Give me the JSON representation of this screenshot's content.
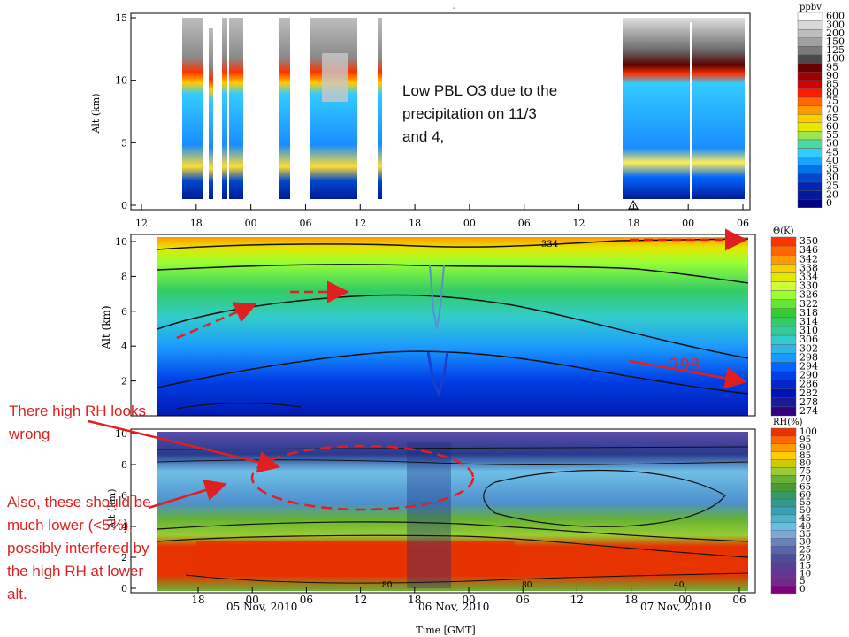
{
  "chart_data": [
    {
      "type": "heatmap",
      "panel": "ozone",
      "ylabel": "Alt (km)",
      "yticks": [
        0,
        5,
        10,
        15
      ],
      "ylim": [
        0,
        15
      ],
      "xticks": [
        "12",
        "18",
        "00",
        "06",
        "12",
        "18",
        "00",
        "06",
        "12",
        "18",
        "00",
        "06"
      ],
      "colorbar": {
        "unit": "ppbv",
        "levels": [
          "600",
          "300",
          "200",
          "150",
          "125",
          "100",
          "95",
          "90",
          "85",
          "80",
          "75",
          "70",
          "65",
          "60",
          "55",
          "50",
          "45",
          "40",
          "35",
          "30",
          "25",
          "20",
          "0"
        ],
        "colors": [
          "#ffffff",
          "#d8d8d8",
          "#bdbdbd",
          "#a0a0a0",
          "#7a7a7a",
          "#4a4a4a",
          "#6b0000",
          "#a00000",
          "#d40000",
          "#ff1a00",
          "#ff6600",
          "#ff9900",
          "#ffcc00",
          "#e6e600",
          "#99e64d",
          "#4dd9a6",
          "#33ccff",
          "#1aa3ff",
          "#0073e6",
          "#0047cc",
          "#0026b3",
          "#001a99",
          "#000080"
        ]
      }
    },
    {
      "type": "heatmap",
      "panel": "theta",
      "ylabel": "Alt (km)",
      "yticks": [
        2,
        4,
        6,
        8,
        10
      ],
      "ylim": [
        0,
        10
      ],
      "contour_labels": [
        "334",
        "298"
      ],
      "colorbar": {
        "unit": "Θ(K)",
        "levels": [
          "350",
          "346",
          "342",
          "338",
          "334",
          "330",
          "326",
          "322",
          "318",
          "314",
          "310",
          "306",
          "302",
          "298",
          "294",
          "290",
          "286",
          "282",
          "278",
          "274"
        ],
        "colors": [
          "#ff3300",
          "#ff6600",
          "#ff9900",
          "#ffcc00",
          "#e6e600",
          "#ccff33",
          "#99ff33",
          "#66e633",
          "#33cc33",
          "#33cc66",
          "#33cc99",
          "#33cccc",
          "#33b3e6",
          "#1a99ff",
          "#0066ff",
          "#0040e6",
          "#0026cc",
          "#0013b3",
          "#1a1a99",
          "#330080"
        ]
      }
    },
    {
      "type": "heatmap",
      "panel": "rh",
      "xlabel": "Time [GMT]",
      "ylabel": "Alt (km)",
      "yticks": [
        0,
        2,
        4,
        6,
        8,
        10
      ],
      "ylim": [
        0,
        10
      ],
      "xticks": [
        "18",
        "00",
        "06",
        "12",
        "18",
        "00",
        "06",
        "12",
        "18",
        "00",
        "06"
      ],
      "date_labels": [
        "05 Nov, 2010",
        "06 Nov, 2010",
        "07 Nov, 2010"
      ],
      "contour_labels": [
        "80",
        "80",
        "40"
      ],
      "colorbar": {
        "unit": "RH(%)",
        "levels": [
          "100",
          "95",
          "90",
          "85",
          "80",
          "75",
          "70",
          "65",
          "60",
          "55",
          "50",
          "45",
          "40",
          "35",
          "30",
          "25",
          "20",
          "15",
          "10",
          "5",
          "0"
        ],
        "colors": [
          "#e63300",
          "#ff6600",
          "#ff9900",
          "#ffcc00",
          "#cccc00",
          "#99cc33",
          "#66b333",
          "#4d9933",
          "#339966",
          "#33998c",
          "#33a3b3",
          "#4db3cc",
          "#66bfe6",
          "#80a6d9",
          "#6680c0",
          "#5566b0",
          "#4d4da0",
          "#5a3d99",
          "#663399",
          "#73268c",
          "#800080"
        ]
      }
    }
  ],
  "annotations": {
    "ozone_note": [
      "Low PBL O3 due to the",
      "precipitation on 11/3",
      "and 4,"
    ],
    "rh_note": [
      "There high RH looks",
      "wrong"
    ],
    "lower_note": [
      "Also, these should be",
      "much lower (<5%),",
      "possibly interfered by",
      "the high RH at lower",
      "alt."
    ]
  }
}
